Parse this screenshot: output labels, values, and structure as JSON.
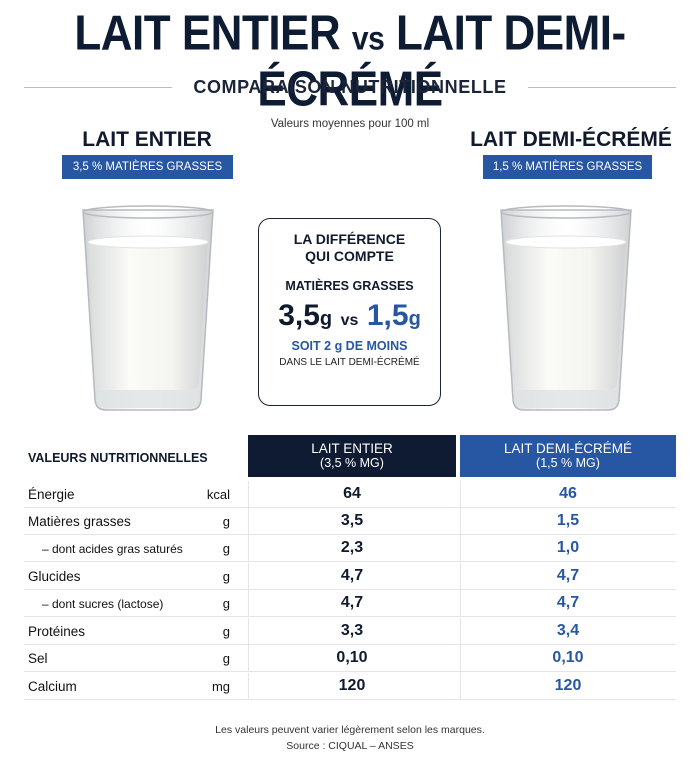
{
  "header": {
    "title_left": "LAIT ENTIER",
    "title_vs": "vs",
    "title_right": "LAIT DEMI-ÉCRÉMÉ",
    "subtitle": "COMPARAISON NUTRITIONNELLE",
    "per100": "Valeurs moyennes pour 100 ml"
  },
  "products": {
    "left": {
      "name": "LAIT ENTIER",
      "badge": "3,5 % MATIÈRES GRASSES"
    },
    "right": {
      "name": "LAIT DEMI-ÉCRÉMÉ",
      "badge": "1,5 % MATIÈRES GRASSES"
    }
  },
  "difference": {
    "title_line1": "LA DIFFÉRENCE",
    "title_line2": "QUI COMPTE",
    "label": "MATIÈRES GRASSES",
    "value_left": "3,5",
    "value_right": "1,5",
    "unit": "g",
    "vs": "vs",
    "less": "SOIT 2 g DE MOINS",
    "note": "DANS LE LAIT DEMI-ÉCRÉMÉ"
  },
  "table": {
    "label": "VALEURS NUTRITIONNELLES",
    "col_left": {
      "line1": "LAIT ENTIER",
      "line2": "(3,5 % MG)"
    },
    "col_right": {
      "line1": "LAIT DEMI-ÉCRÉMÉ",
      "line2": "(1,5 % MG)"
    },
    "rows": [
      {
        "name": "Énergie",
        "unit": "kcal",
        "left": "64",
        "right": "46"
      },
      {
        "name": "Matières grasses",
        "unit": "g",
        "left": "3,5",
        "right": "1,5"
      },
      {
        "name": "– dont acides gras saturés",
        "unit": "g",
        "left": "2,3",
        "right": "1,0"
      },
      {
        "name": "Glucides",
        "unit": "g",
        "left": "4,7",
        "right": "4,7"
      },
      {
        "name": "– dont sucres (lactose)",
        "unit": "g",
        "left": "4,7",
        "right": "4,7"
      },
      {
        "name": "Protéines",
        "unit": "g",
        "left": "3,3",
        "right": "3,4"
      },
      {
        "name": "Sel",
        "unit": "g",
        "left": "0,10",
        "right": "0,10"
      },
      {
        "name": "Calcium",
        "unit": "mg",
        "left": "120",
        "right": "120"
      }
    ]
  },
  "footer": {
    "note": "Les valeurs peuvent varier légèrement selon les marques.",
    "source": "Source : CIQUAL – ANSES"
  },
  "colors": {
    "navy": "#0f1b33",
    "blue": "#2756a3"
  }
}
